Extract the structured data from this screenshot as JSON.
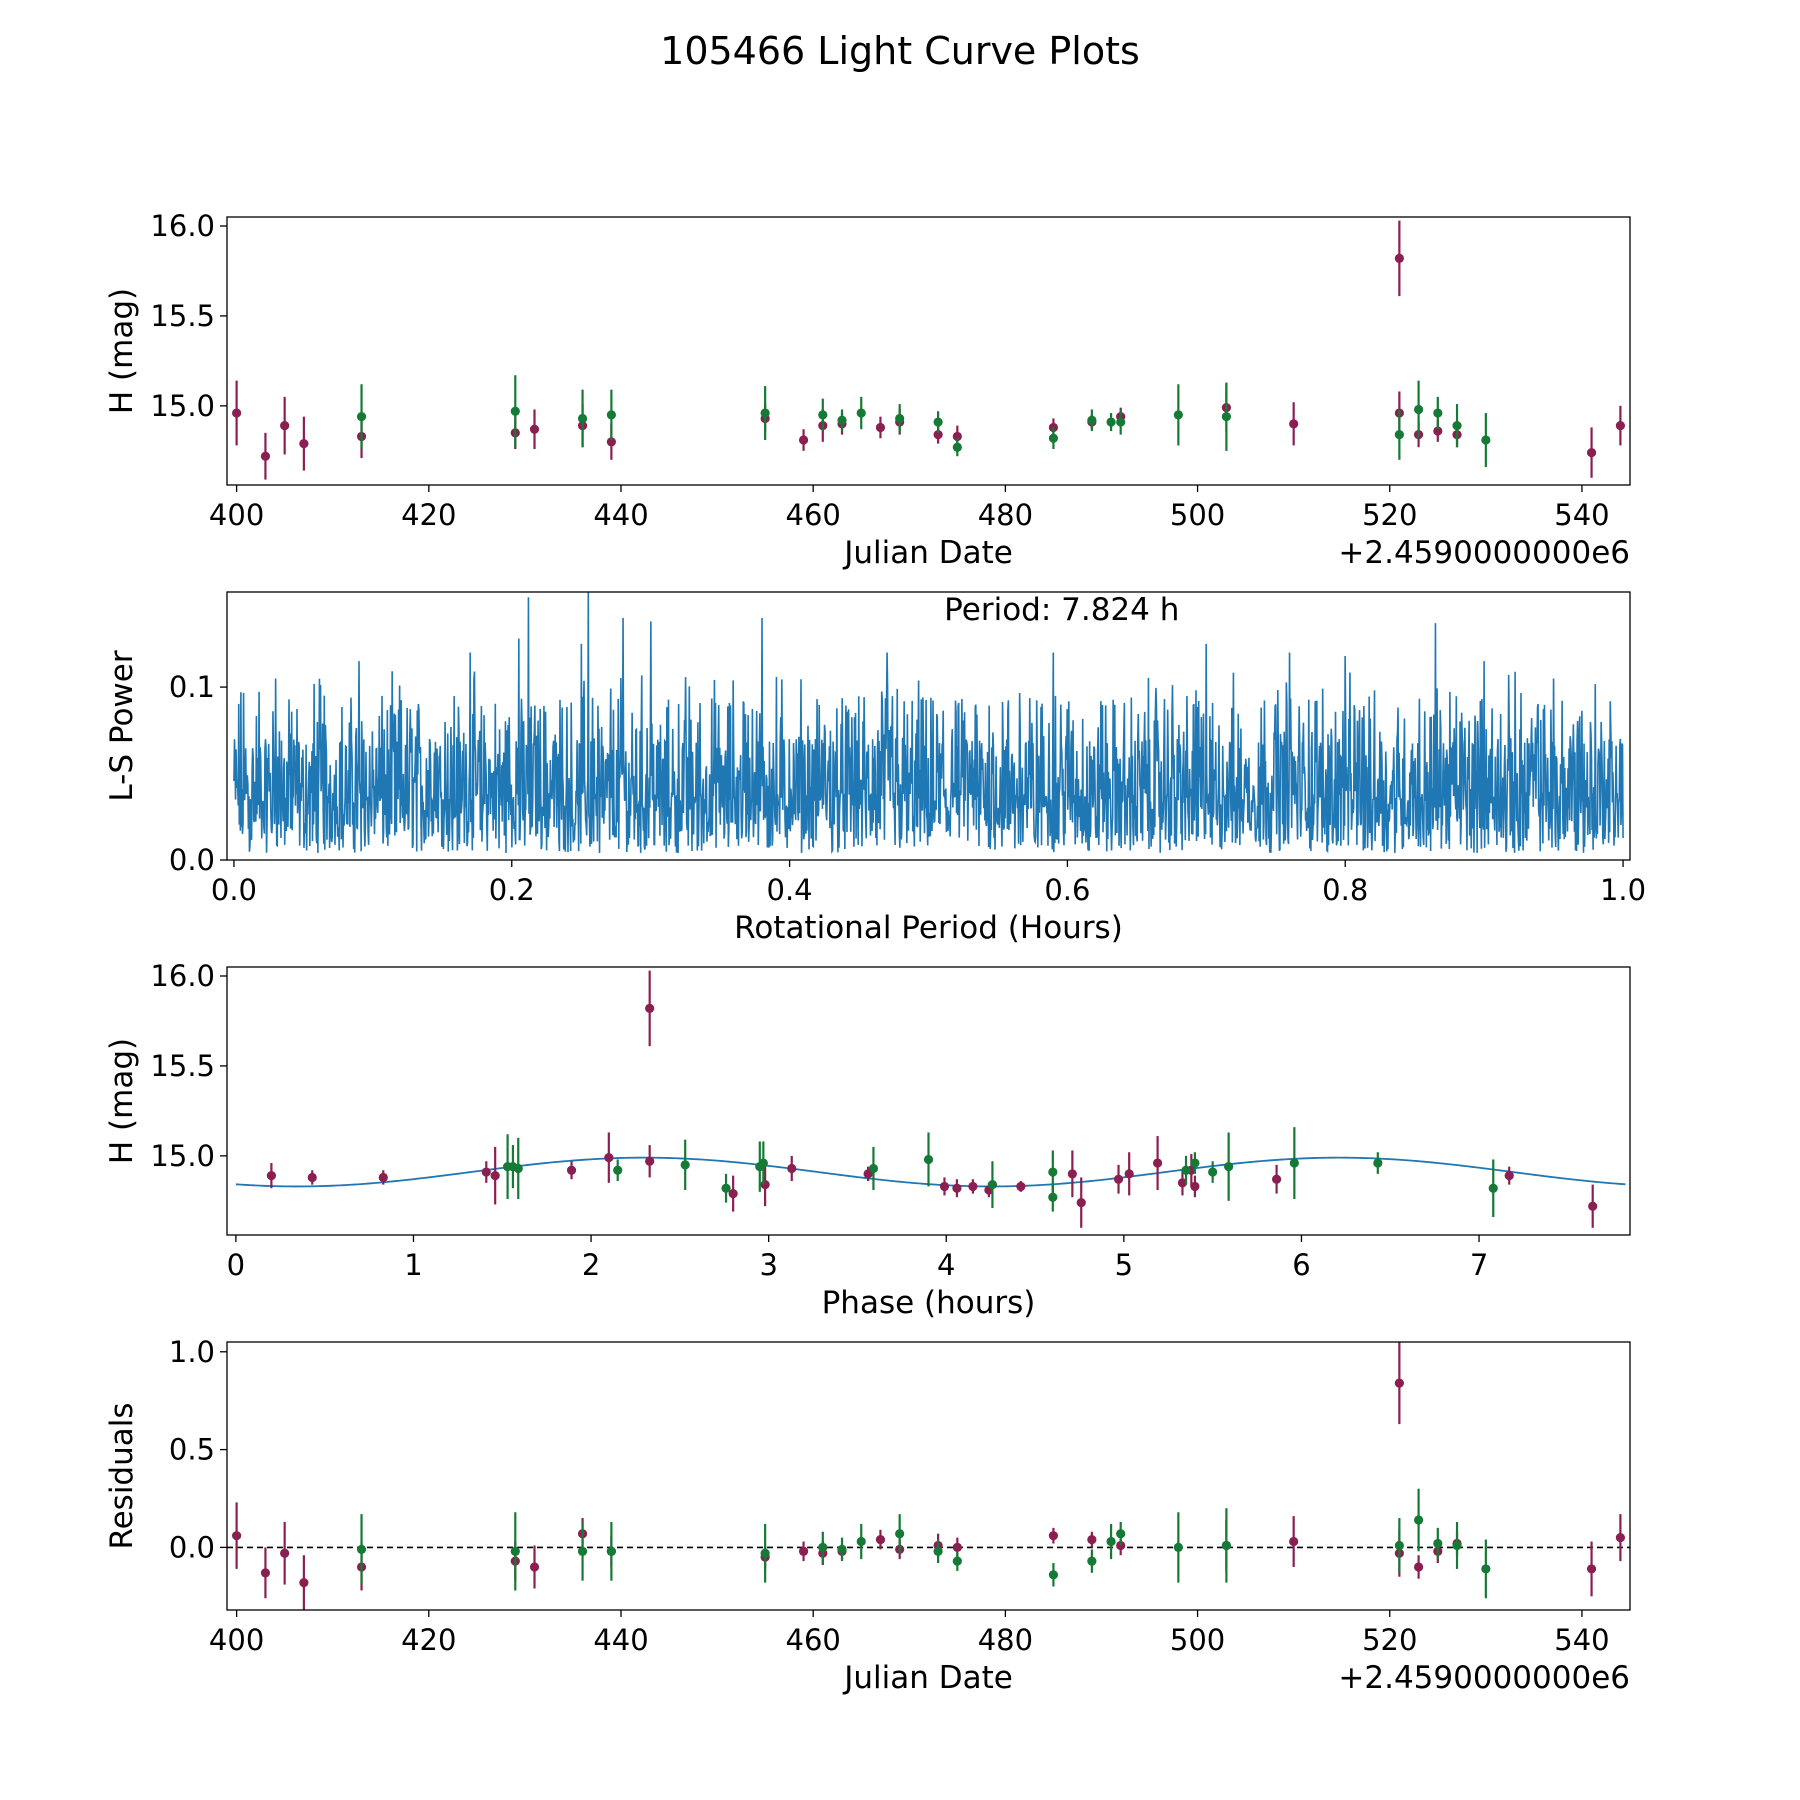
{
  "figure": {
    "title": "105466 Light Curve Plots"
  },
  "colors": {
    "maroon": "#8c1f52",
    "green": "#157a35",
    "blue": "#1f77b4",
    "axis": "#000000"
  },
  "chart_data": [
    {
      "id": "lightcurve",
      "type": "scatter",
      "xlabel": "Julian Date",
      "ylabel": "H (mag)",
      "offset_text": "+2.4590000000e6",
      "xlim": [
        399,
        545
      ],
      "ylim": [
        14.56,
        16.05
      ],
      "xticks": [
        400,
        420,
        440,
        460,
        480,
        500,
        520,
        540
      ],
      "yticks": [
        15.0,
        15.5,
        16.0
      ],
      "series": [
        {
          "name": "maroon",
          "color": "#8c1f52",
          "points": [
            [
              400,
              14.96,
              0.18
            ],
            [
              403,
              14.72,
              0.13
            ],
            [
              405,
              14.89,
              0.16
            ],
            [
              407,
              14.79,
              0.15
            ],
            [
              413,
              14.83,
              0.12
            ],
            [
              429,
              14.85,
              0.09
            ],
            [
              431,
              14.87,
              0.11
            ],
            [
              436,
              14.89,
              0.12
            ],
            [
              439,
              14.8,
              0.1
            ],
            [
              455,
              14.93,
              0.08
            ],
            [
              459,
              14.81,
              0.06
            ],
            [
              461,
              14.89,
              0.09
            ],
            [
              463,
              14.9,
              0.06
            ],
            [
              467,
              14.88,
              0.06
            ],
            [
              469,
              14.91,
              0.07
            ],
            [
              473,
              14.84,
              0.05
            ],
            [
              475,
              14.83,
              0.06
            ],
            [
              485,
              14.88,
              0.05
            ],
            [
              489,
              14.91,
              0.04
            ],
            [
              492,
              14.94,
              0.05
            ],
            [
              503,
              14.99,
              0.13
            ],
            [
              510,
              14.9,
              0.12
            ],
            [
              521,
              15.82,
              0.21
            ],
            [
              521,
              14.96,
              0.12
            ],
            [
              523,
              14.84,
              0.07
            ],
            [
              525,
              14.86,
              0.06
            ],
            [
              527,
              14.84,
              0.07
            ],
            [
              541,
              14.74,
              0.14
            ],
            [
              544,
              14.89,
              0.11
            ]
          ]
        },
        {
          "name": "green",
          "color": "#157a35",
          "points": [
            [
              413,
              14.94,
              0.18
            ],
            [
              429,
              14.97,
              0.2
            ],
            [
              436,
              14.93,
              0.16
            ],
            [
              439,
              14.95,
              0.14
            ],
            [
              455,
              14.96,
              0.15
            ],
            [
              461,
              14.95,
              0.09
            ],
            [
              463,
              14.92,
              0.06
            ],
            [
              465,
              14.96,
              0.09
            ],
            [
              469,
              14.93,
              0.08
            ],
            [
              473,
              14.91,
              0.06
            ],
            [
              475,
              14.77,
              0.05
            ],
            [
              485,
              14.82,
              0.06
            ],
            [
              489,
              14.92,
              0.06
            ],
            [
              491,
              14.91,
              0.05
            ],
            [
              492,
              14.91,
              0.07
            ],
            [
              498,
              14.95,
              0.17
            ],
            [
              503,
              14.94,
              0.19
            ],
            [
              521,
              14.84,
              0.14
            ],
            [
              523,
              14.98,
              0.16
            ],
            [
              525,
              14.96,
              0.09
            ],
            [
              527,
              14.89,
              0.12
            ],
            [
              530,
              14.81,
              0.15
            ]
          ]
        }
      ]
    },
    {
      "id": "periodogram",
      "type": "line",
      "xlabel": "Rotational Period (Hours)",
      "ylabel": "L-S Power",
      "annotation": "Period: 7.824 h",
      "xlim": [
        -0.005,
        1.005
      ],
      "ylim": [
        0.0,
        0.155
      ],
      "xticks": [
        0.0,
        0.2,
        0.4,
        0.6,
        0.8,
        1.0
      ],
      "yticks": [
        0.0,
        0.1
      ],
      "samples": 2600,
      "x_range": [
        0.0,
        1.0
      ],
      "peaks": [
        [
          0.005,
          0.097
        ],
        [
          0.03,
          0.105
        ],
        [
          0.09,
          0.115
        ],
        [
          0.17,
          0.12
        ],
        [
          0.205,
          0.128
        ],
        [
          0.212,
          0.152
        ],
        [
          0.25,
          0.125
        ],
        [
          0.255,
          0.155
        ],
        [
          0.28,
          0.14
        ],
        [
          0.3,
          0.138
        ],
        [
          0.38,
          0.14
        ],
        [
          0.47,
          0.12
        ],
        [
          0.59,
          0.12
        ],
        [
          0.7,
          0.125
        ],
        [
          0.76,
          0.12
        ],
        [
          0.8,
          0.118
        ],
        [
          0.865,
          0.137
        ],
        [
          0.9,
          0.115
        ],
        [
          0.95,
          0.105
        ],
        [
          0.998,
          0.07
        ]
      ],
      "color": "#1f77b4"
    },
    {
      "id": "phased",
      "type": "scatter",
      "xlabel": "Phase (hours)",
      "ylabel": "H (mag)",
      "xlim": [
        -0.05,
        7.85
      ],
      "ylim": [
        14.56,
        16.05
      ],
      "xticks": [
        0,
        1,
        2,
        3,
        4,
        5,
        6,
        7
      ],
      "yticks": [
        15.0,
        15.5,
        16.0
      ],
      "fit": {
        "mean": 14.91,
        "amplitude": 0.08,
        "period": 7.824,
        "peak_phase": 2.3,
        "color": "#1f77b4"
      },
      "series": [
        {
          "name": "maroon",
          "color": "#8c1f52",
          "points": [
            [
              0.2,
              14.89,
              0.07
            ],
            [
              0.43,
              14.88,
              0.04
            ],
            [
              0.83,
              14.88,
              0.04
            ],
            [
              1.41,
              14.91,
              0.06
            ],
            [
              1.46,
              14.89,
              0.16
            ],
            [
              1.89,
              14.92,
              0.05
            ],
            [
              2.1,
              14.99,
              0.14
            ],
            [
              2.33,
              15.82,
              0.21
            ],
            [
              2.33,
              14.97,
              0.09
            ],
            [
              2.8,
              14.79,
              0.1
            ],
            [
              2.98,
              14.84,
              0.12
            ],
            [
              3.13,
              14.93,
              0.07
            ],
            [
              3.56,
              14.9,
              0.04
            ],
            [
              3.99,
              14.83,
              0.05
            ],
            [
              4.06,
              14.82,
              0.05
            ],
            [
              4.15,
              14.83,
              0.04
            ],
            [
              4.24,
              14.81,
              0.04
            ],
            [
              4.42,
              14.83,
              0.03
            ],
            [
              4.71,
              14.9,
              0.13
            ],
            [
              4.76,
              14.74,
              0.14
            ],
            [
              4.97,
              14.87,
              0.08
            ],
            [
              5.03,
              14.9,
              0.12
            ],
            [
              5.19,
              14.96,
              0.15
            ],
            [
              5.33,
              14.85,
              0.07
            ],
            [
              5.38,
              14.92,
              0.09
            ],
            [
              5.4,
              14.83,
              0.06
            ],
            [
              5.86,
              14.87,
              0.08
            ],
            [
              7.17,
              14.89,
              0.05
            ],
            [
              7.64,
              14.72,
              0.12
            ]
          ]
        },
        {
          "name": "green",
          "color": "#157a35",
          "points": [
            [
              1.53,
              14.94,
              0.18
            ],
            [
              1.56,
              14.94,
              0.12
            ],
            [
              1.59,
              14.93,
              0.17
            ],
            [
              2.15,
              14.92,
              0.06
            ],
            [
              2.53,
              14.95,
              0.14
            ],
            [
              2.76,
              14.82,
              0.08
            ],
            [
              2.95,
              14.94,
              0.14
            ],
            [
              2.97,
              14.96,
              0.12
            ],
            [
              3.59,
              14.93,
              0.12
            ],
            [
              3.9,
              14.98,
              0.15
            ],
            [
              4.26,
              14.84,
              0.13
            ],
            [
              4.6,
              14.77,
              0.08
            ],
            [
              4.6,
              14.91,
              0.12
            ],
            [
              5.35,
              14.92,
              0.08
            ],
            [
              5.4,
              14.96,
              0.06
            ],
            [
              5.5,
              14.91,
              0.06
            ],
            [
              5.59,
              14.94,
              0.19
            ],
            [
              5.96,
              14.96,
              0.2
            ],
            [
              6.43,
              14.96,
              0.06
            ],
            [
              7.08,
              14.82,
              0.16
            ]
          ]
        }
      ]
    },
    {
      "id": "residuals",
      "type": "scatter",
      "xlabel": "Julian Date",
      "ylabel": "Residuals",
      "offset_text": "+2.4590000000e6",
      "xlim": [
        399,
        545
      ],
      "ylim": [
        -0.32,
        1.05
      ],
      "xticks": [
        400,
        420,
        440,
        460,
        480,
        500,
        520,
        540
      ],
      "yticks": [
        0.0,
        0.5,
        1.0
      ],
      "zero_line": 0.0,
      "series": [
        {
          "name": "maroon",
          "color": "#8c1f52",
          "points": [
            [
              400,
              0.06,
              0.17
            ],
            [
              403,
              -0.13,
              0.13
            ],
            [
              405,
              -0.03,
              0.16
            ],
            [
              407,
              -0.18,
              0.14
            ],
            [
              413,
              -0.1,
              0.12
            ],
            [
              429,
              -0.07,
              0.1
            ],
            [
              431,
              -0.1,
              0.11
            ],
            [
              436,
              0.07,
              0.08
            ],
            [
              439,
              -0.02,
              0.08
            ],
            [
              455,
              -0.05,
              0.06
            ],
            [
              459,
              -0.02,
              0.05
            ],
            [
              461,
              -0.03,
              0.06
            ],
            [
              463,
              -0.02,
              0.04
            ],
            [
              467,
              0.04,
              0.05
            ],
            [
              469,
              -0.01,
              0.05
            ],
            [
              473,
              0.01,
              0.06
            ],
            [
              475,
              0.0,
              0.05
            ],
            [
              485,
              0.06,
              0.04
            ],
            [
              489,
              0.04,
              0.04
            ],
            [
              492,
              0.01,
              0.05
            ],
            [
              503,
              0.01,
              0.13
            ],
            [
              510,
              0.03,
              0.13
            ],
            [
              521,
              0.84,
              0.21
            ],
            [
              521,
              -0.03,
              0.12
            ],
            [
              523,
              -0.1,
              0.06
            ],
            [
              525,
              -0.02,
              0.06
            ],
            [
              527,
              0.02,
              0.06
            ],
            [
              541,
              -0.11,
              0.14
            ],
            [
              544,
              0.05,
              0.12
            ]
          ]
        },
        {
          "name": "green",
          "color": "#157a35",
          "points": [
            [
              413,
              -0.01,
              0.18
            ],
            [
              429,
              -0.02,
              0.2
            ],
            [
              436,
              -0.02,
              0.15
            ],
            [
              439,
              -0.02,
              0.15
            ],
            [
              455,
              -0.03,
              0.15
            ],
            [
              461,
              0.0,
              0.08
            ],
            [
              463,
              -0.01,
              0.06
            ],
            [
              465,
              0.03,
              0.09
            ],
            [
              469,
              0.07,
              0.1
            ],
            [
              473,
              -0.02,
              0.06
            ],
            [
              475,
              -0.07,
              0.05
            ],
            [
              485,
              -0.14,
              0.06
            ],
            [
              489,
              -0.07,
              0.06
            ],
            [
              491,
              0.03,
              0.09
            ],
            [
              492,
              0.07,
              0.06
            ],
            [
              498,
              0.0,
              0.18
            ],
            [
              503,
              0.01,
              0.19
            ],
            [
              521,
              0.01,
              0.14
            ],
            [
              523,
              0.14,
              0.16
            ],
            [
              525,
              0.02,
              0.08
            ],
            [
              527,
              0.01,
              0.12
            ],
            [
              530,
              -0.11,
              0.15
            ]
          ]
        }
      ]
    }
  ]
}
